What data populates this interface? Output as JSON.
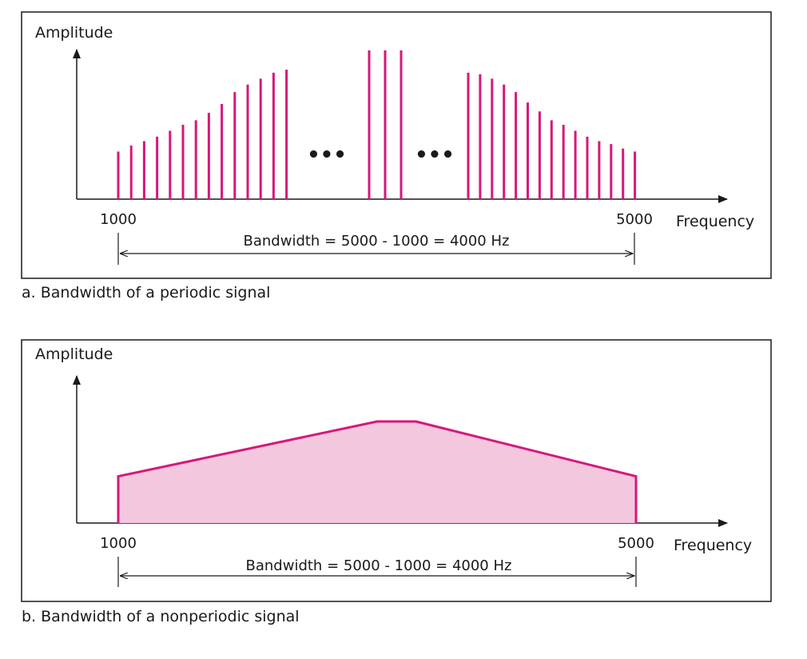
{
  "colors": {
    "spectrum": "#d6187a",
    "fill": "#f3c8df",
    "ink": "#1a1a1a"
  },
  "panel_a": {
    "y_axis_label": "Amplitude",
    "x_axis_label": "Frequency",
    "tick_start": "1000",
    "tick_end": "5000",
    "bandwidth_label": "Bandwidth = 5000 - 1000 = 4000 Hz",
    "ellipsis_left": "•••",
    "ellipsis_right": "•••",
    "caption": "a. Bandwidth of a periodic signal"
  },
  "panel_b": {
    "y_axis_label": "Amplitude",
    "x_axis_label": "Frequency",
    "tick_start": "1000",
    "tick_end": "5000",
    "bandwidth_label": "Bandwidth = 5000 - 1000 = 4000 Hz",
    "caption": "b. Bandwidth of a nonperiodic signal"
  },
  "chart_data": [
    {
      "type": "bar",
      "x_range": [
        1000,
        5000
      ],
      "left_group_amplitudes": [
        0.32,
        0.36,
        0.39,
        0.42,
        0.46,
        0.5,
        0.53,
        0.58,
        0.64,
        0.72,
        0.77,
        0.81,
        0.85,
        0.87
      ],
      "center_group_amplitudes": [
        1.0,
        1.0,
        1.0
      ],
      "right_group_amplitudes": [
        0.85,
        0.84,
        0.81,
        0.77,
        0.72,
        0.65,
        0.59,
        0.53,
        0.5,
        0.46,
        0.42,
        0.39,
        0.37,
        0.34,
        0.32
      ],
      "gaps_marked_with_ellipsis": true
    },
    {
      "type": "area",
      "x": [
        1000,
        3000,
        3300,
        5000
      ],
      "y": [
        0.46,
        1.0,
        1.0,
        0.46
      ],
      "x_range": [
        1000,
        5000
      ]
    }
  ]
}
